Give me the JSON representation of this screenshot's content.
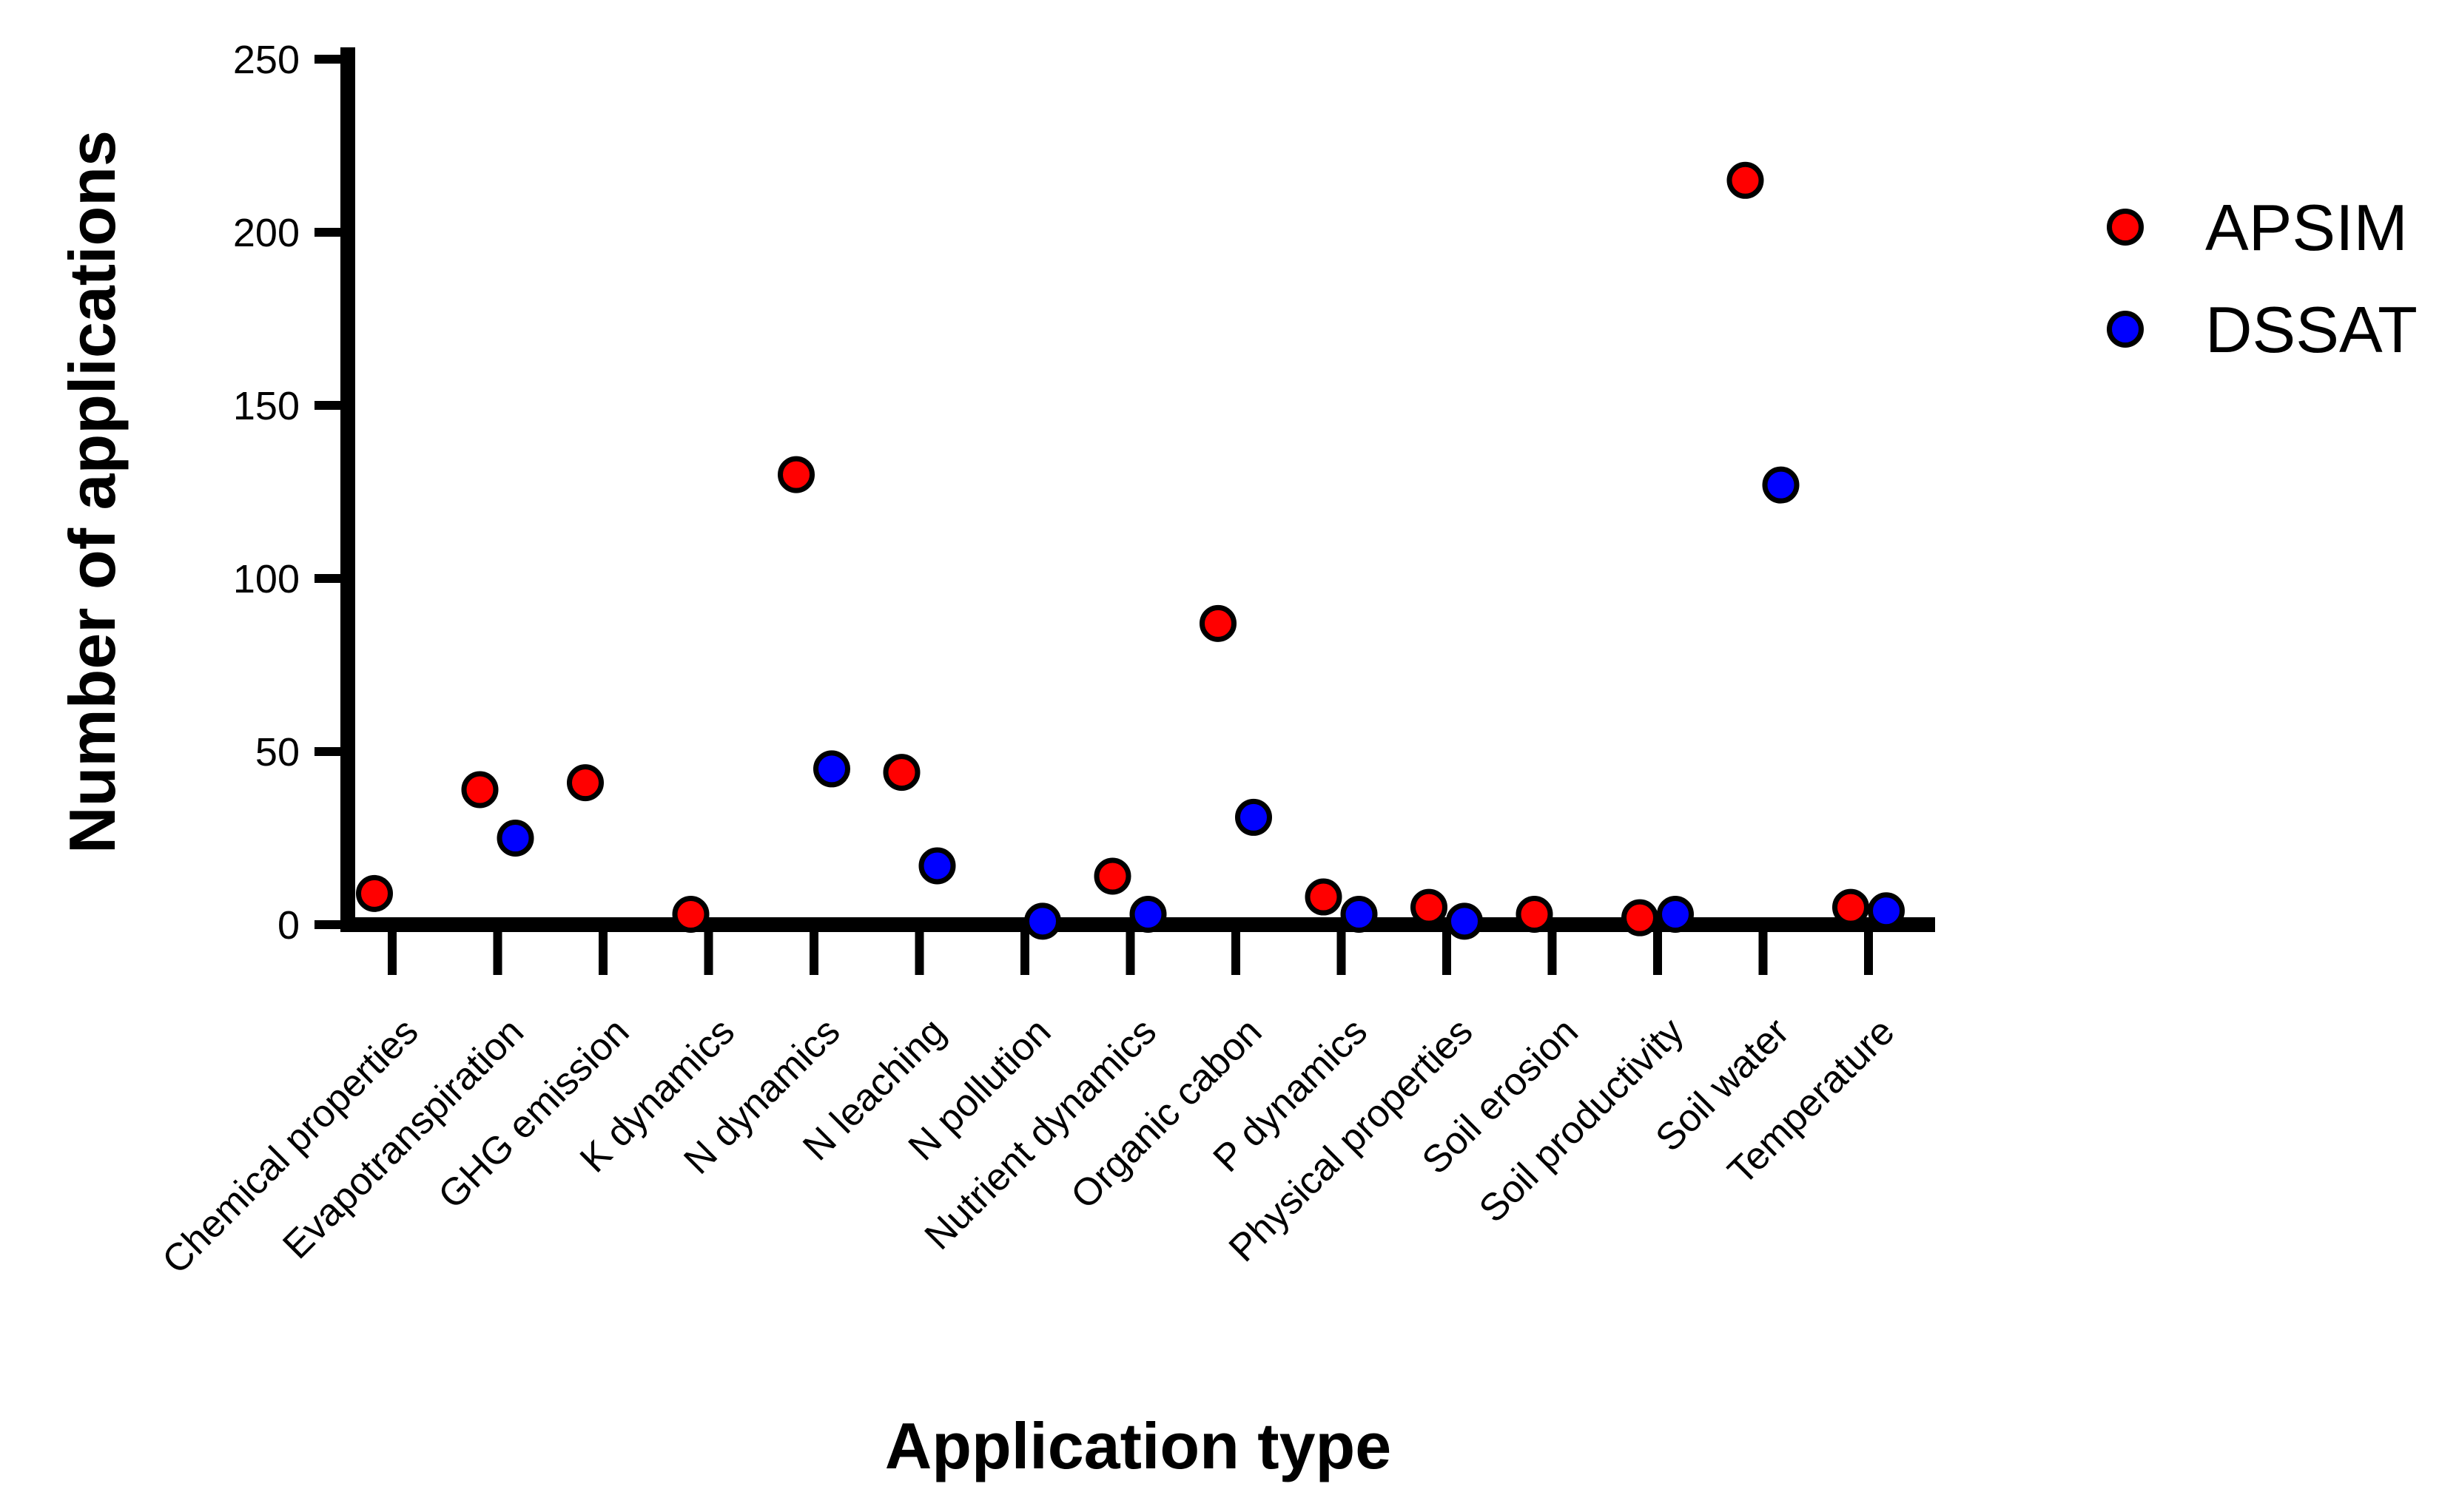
{
  "chart_data": {
    "type": "scatter",
    "title": "",
    "xlabel": "Application type",
    "ylabel": "Number of applications",
    "ylim": [
      0,
      250
    ],
    "yticks": [
      0,
      50,
      100,
      150,
      200,
      250
    ],
    "grid": false,
    "legend_position": "top-right",
    "marker": "circle",
    "axis_color": "#000000",
    "categories": [
      "Chemical properties",
      "Evapotranspiration",
      "GHG emission",
      "K dynamics",
      "N dynamics",
      "N leaching",
      "N pollution",
      "Nutrient dynamics",
      "Organic cabon",
      "P dynamics",
      "Physical properties",
      "Soil erosion",
      "Soil productivity",
      "Soil water",
      "Temperature"
    ],
    "series": [
      {
        "name": "APSIM",
        "color": "#ff0000",
        "values": [
          9,
          39,
          41,
          3,
          130,
          44,
          null,
          14,
          87,
          8,
          5,
          3,
          2,
          215,
          5
        ]
      },
      {
        "name": "DSSAT",
        "color": "#0000ff",
        "values": [
          null,
          25,
          null,
          null,
          45,
          17,
          1,
          3,
          31,
          3,
          1,
          null,
          3,
          127,
          4
        ]
      }
    ]
  }
}
